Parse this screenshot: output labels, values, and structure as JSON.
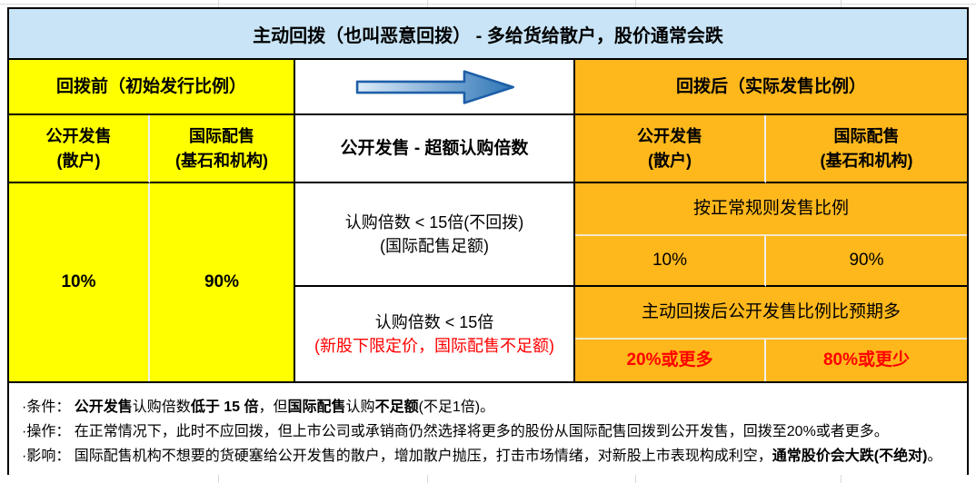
{
  "title": {
    "text": "主动回拨（也叫恶意回拨） - 多给货给散户，股价通常会跌"
  },
  "colors": {
    "title_bg": "#C8E4F6",
    "before_bg": "#FFFF00",
    "after_bg": "#FFB81C",
    "highlight_red": "#FF0000",
    "border_black": "#000000",
    "light_divider": "#F0F0F0",
    "worksheet_gridline": "#D9D9D9",
    "arrow_gradient_start": "#DCEBF8",
    "arrow_gradient_end": "#2E75B6",
    "arrow_stroke": "#1E5FA8"
  },
  "before": {
    "header": "回拨前（初始发行比例）",
    "public": {
      "line1": "公开发售",
      "line2": "(散户)"
    },
    "intl": {
      "line1": "国际配售",
      "line2": "(基石和机构)"
    },
    "public_value": "10%",
    "intl_value": "90%"
  },
  "middle": {
    "arrow_icon": "right-arrow",
    "header": "公开发售 - 超额认购倍数",
    "case_no_clawback": {
      "line1": "认购倍数 < 15倍(不回拨)",
      "line2": "(国际配售足额)"
    },
    "case_clawback": {
      "line1": "认购倍数 < 15倍",
      "line2": "(新股下限定价，国际配售不足额)"
    }
  },
  "after": {
    "header": "回拨后（实际发售比例）",
    "public": {
      "line1": "公开发售",
      "line2": "(散户)"
    },
    "intl": {
      "line1": "国际配售",
      "line2": "(基石和机构)"
    },
    "normal_rule": {
      "label": "按正常规则发售比例",
      "public_value": "10%",
      "intl_value": "90%"
    },
    "clawback": {
      "label": "主动回拨后公开发售比例比预期多",
      "public_value": "20%或更多",
      "intl_value": "80%或更少"
    }
  },
  "notes": {
    "items": [
      {
        "segments": [
          {
            "t": "·条件： "
          },
          {
            "t": "公开发售",
            "b": true
          },
          {
            "t": "认购倍数"
          },
          {
            "t": "低于 15 倍",
            "b": true
          },
          {
            "t": "，但"
          },
          {
            "t": "国际配售",
            "b": true
          },
          {
            "t": "认购"
          },
          {
            "t": "不足额",
            "b": true
          },
          {
            "t": "(不足1倍)。"
          }
        ]
      },
      {
        "segments": [
          {
            "t": "·操作： 在正常情况下，此时不应回拨，但上市公司或承销商仍然选择将更多的股份从国际配售回拨到公开发售，回拨至20%或者更多。"
          }
        ]
      },
      {
        "segments": [
          {
            "t": "·影响： 国际配售机构不想要的货硬塞给公开发售的散户，增加散户抛压，打击市场情绪，对新股上市表现构成利空，"
          },
          {
            "t": "通常股价会大跌(不绝对)",
            "b": true
          },
          {
            "t": "。"
          }
        ]
      }
    ]
  }
}
